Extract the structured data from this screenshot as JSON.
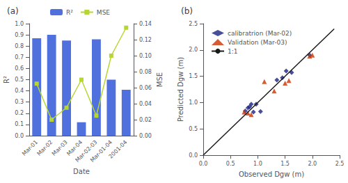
{
  "chart_data": [
    {
      "type": "bar",
      "title": "(a)",
      "categories": [
        "Mar-01",
        "Mar-02",
        "Mar-03",
        "Mar-04",
        "Mar-02-03",
        "Mar-01-04",
        "2001-04"
      ],
      "series": [
        {
          "name": "R²",
          "type": "bar",
          "values": [
            0.87,
            0.9,
            0.85,
            0.12,
            0.86,
            0.5,
            0.41
          ]
        },
        {
          "name": "MSE",
          "type": "line",
          "marker": "square",
          "axis": "y2",
          "values": [
            0.065,
            0.02,
            0.035,
            0.07,
            0.025,
            0.1,
            0.135
          ]
        }
      ],
      "xlabel": "Date",
      "ylabel": "R²",
      "y2label": "MSE",
      "ylim": [
        0.0,
        1.0
      ],
      "yticks": [
        {
          "value": 0.0,
          "label": "0.0"
        },
        0.1,
        0.2,
        0.3,
        0.4,
        0.5,
        0.6,
        0.7,
        0.8,
        0.9,
        {
          "value": 1.0,
          "label": "1.0"
        }
      ],
      "y2lim": [
        0.0,
        0.14
      ],
      "y2ticks": [
        {
          "value": 0.0,
          "label": "0.00"
        },
        0.02,
        0.04,
        0.06,
        0.08,
        {
          "value": 0.1,
          "label": "0.10"
        },
        0.12,
        0.14
      ],
      "legend": "upper center",
      "grid": false
    },
    {
      "type": "scatter",
      "title": "(b)",
      "series": [
        {
          "name": "calibratrion (Mar-02)",
          "type": "scatter",
          "marker": "diamond",
          "color": "#1a237e",
          "x": [
            0.77,
            0.82,
            0.85,
            0.88,
            0.92,
            0.97,
            1.05,
            1.35,
            1.45,
            1.52,
            1.62,
            1.95
          ],
          "values": [
            0.84,
            0.9,
            0.92,
            0.97,
            0.82,
            0.97,
            0.83,
            1.43,
            1.47,
            1.6,
            1.57,
            1.9
          ]
        },
        {
          "name": "Validation (Mar-03)",
          "type": "scatter",
          "marker": "triangle",
          "color": "#cc3300",
          "x": [
            0.75,
            0.82,
            0.88,
            1.12,
            1.3,
            1.5,
            1.57,
            1.95,
            2.0
          ],
          "values": [
            0.82,
            0.8,
            0.77,
            1.4,
            1.22,
            1.37,
            1.42,
            1.88,
            1.9
          ]
        },
        {
          "name": "1:1",
          "type": "line",
          "marker": "none",
          "color": "#1a1a1a",
          "x": [
            0.0,
            2.4
          ],
          "values": [
            0.0,
            2.4
          ]
        }
      ],
      "xlabel": "Observed Dgw (m)",
      "ylabel": "Predicted Dgw (m)",
      "xlim": [
        0.0,
        2.5
      ],
      "ylim": [
        0.0,
        2.5
      ],
      "xticks": [
        {
          "value": 0.0,
          "label": "0.0"
        },
        0.5,
        {
          "value": 1.0,
          "label": "1.0"
        },
        1.5,
        {
          "value": 2.0,
          "label": "2.0"
        },
        2.5
      ],
      "yticks": [
        {
          "value": 0.0,
          "label": "0.0"
        },
        0.5,
        {
          "value": 1.0,
          "label": "1.0"
        },
        1.5,
        {
          "value": 2.0,
          "label": "2.0"
        },
        2.5
      ],
      "legend": "upper left",
      "grid": false
    }
  ]
}
